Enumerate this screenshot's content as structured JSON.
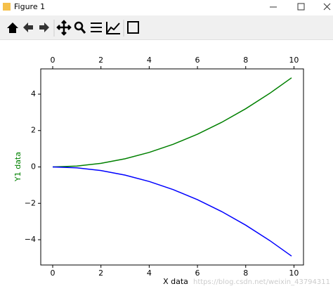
{
  "window": {
    "title": "Figure 1"
  },
  "chart_data": {
    "type": "line",
    "xlabel": "X data",
    "ylabel": "Y1 data",
    "ylabel_color": "#008000",
    "x": [
      0,
      1,
      2,
      3,
      4,
      5,
      6,
      7,
      8,
      9,
      9.9
    ],
    "series": [
      {
        "color": "#008000",
        "values": [
          0,
          0.05,
          0.2,
          0.45,
          0.8,
          1.25,
          1.8,
          2.45,
          3.2,
          4.05,
          4.9
        ]
      },
      {
        "color": "#0000ff",
        "values": [
          0,
          -0.05,
          -0.2,
          -0.45,
          -0.8,
          -1.25,
          -1.8,
          -2.45,
          -3.2,
          -4.05,
          -4.9
        ]
      }
    ],
    "xlim": [
      -0.495,
      10.395
    ],
    "xticks": [
      0,
      2,
      4,
      6,
      8,
      10
    ],
    "x2lim": [
      -0.495,
      10.395
    ],
    "x2ticks": [
      0,
      2,
      4,
      6,
      8,
      10
    ],
    "ylim": [
      -5.39,
      5.39
    ],
    "yticks": [
      {
        "value": -4,
        "label": "−4"
      },
      {
        "value": -2,
        "label": "−2"
      },
      0,
      2,
      4
    ],
    "watermark": "https://blog.csdn.net/weixin_43794311"
  }
}
